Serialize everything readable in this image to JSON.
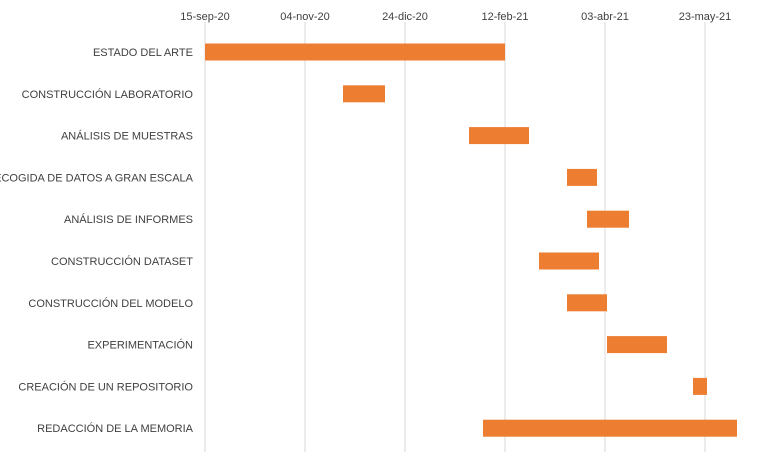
{
  "chart_data": {
    "type": "bar",
    "orientation": "horizontal",
    "subtype": "gantt",
    "x_axis": {
      "position": "top",
      "ticks": [
        "15-sep-20",
        "04-nov-20",
        "24-dic-20",
        "12-feb-21",
        "03-abr-21",
        "23-may-21"
      ],
      "tick_values": [
        "2020-09-15",
        "2020-11-04",
        "2020-12-24",
        "2021-02-12",
        "2021-04-03",
        "2021-05-23"
      ],
      "xlim": [
        "2020-09-15",
        "2021-06-08"
      ]
    },
    "grid": "vertical",
    "bar_color": "#ED7D31",
    "tasks": [
      {
        "name": "ESTADO DEL ARTE",
        "start": "2020-09-15",
        "end": "2021-02-12"
      },
      {
        "name": "CONSTRUCCIÓN LABORATORIO",
        "start": "2020-11-23",
        "end": "2020-12-14"
      },
      {
        "name": "ANÁLISIS DE MUESTRAS",
        "start": "2021-01-25",
        "end": "2021-02-24"
      },
      {
        "name": "RECOGIDA DE DATOS A GRAN ESCALA",
        "start": "2021-03-15",
        "end": "2021-03-30"
      },
      {
        "name": "ANÁLISIS DE INFORMES",
        "start": "2021-03-25",
        "end": "2021-04-15"
      },
      {
        "name": "CONSTRUCCIÓN DATASET",
        "start": "2021-03-01",
        "end": "2021-03-31"
      },
      {
        "name": "CONSTRUCCIÓN DEL MODELO",
        "start": "2021-03-15",
        "end": "2021-04-04"
      },
      {
        "name": "EXPERIMENTACIÓN",
        "start": "2021-04-04",
        "end": "2021-05-04"
      },
      {
        "name": "CREACIÓN DE UN REPOSITORIO",
        "start": "2021-05-17",
        "end": "2021-05-24"
      },
      {
        "name": "REDACCIÓN DE LA MEMORIA",
        "start": "2021-02-01",
        "end": "2021-06-08"
      }
    ]
  }
}
